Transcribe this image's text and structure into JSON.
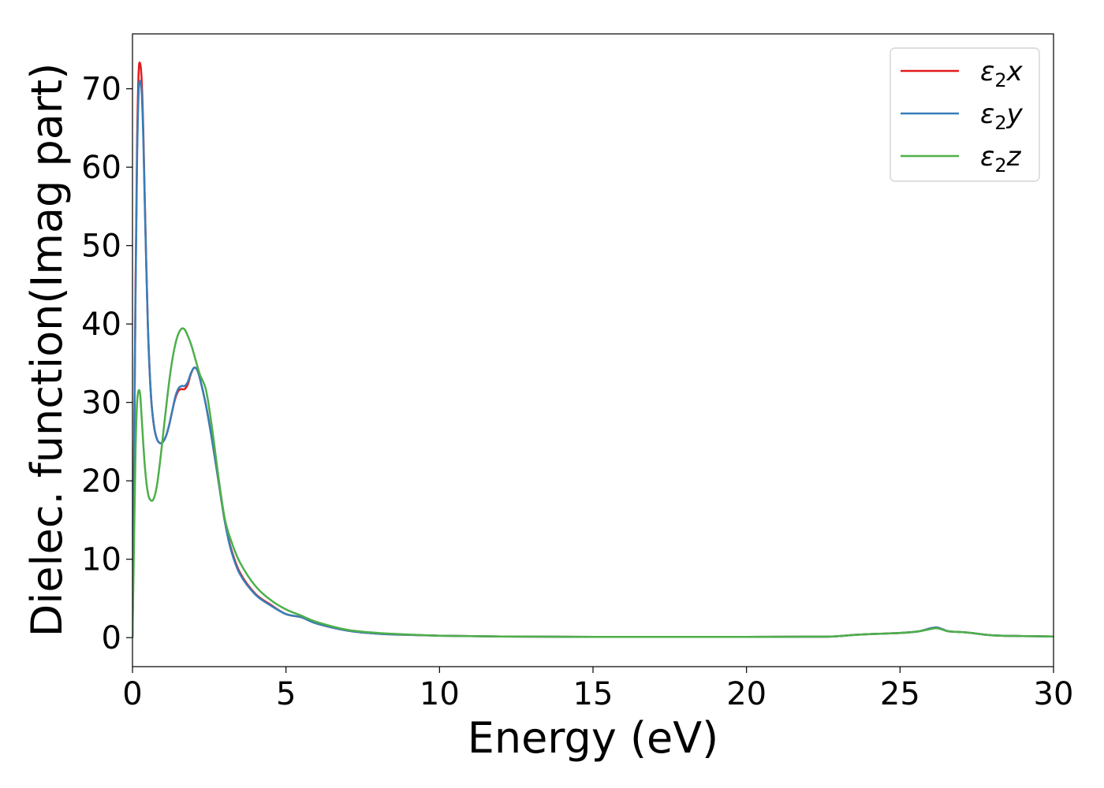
{
  "chart_data": {
    "type": "line",
    "title": "",
    "xlabel": "Energy (eV)",
    "ylabel": "Dielec. function(Imag part)",
    "xlim": [
      0,
      30
    ],
    "ylim": [
      -3.7,
      77
    ],
    "xticks": [
      0,
      5,
      10,
      15,
      20,
      25,
      30
    ],
    "yticks": [
      0,
      10,
      20,
      30,
      40,
      50,
      60,
      70
    ],
    "grid": false,
    "legend_position": "top-right",
    "series": [
      {
        "name": "ε₂x",
        "legend_main": "ε",
        "legend_sub": "2",
        "legend_suffix": "x",
        "color": "#e41a1c",
        "points": [
          [
            0,
            0
          ],
          [
            0.05,
            22
          ],
          [
            0.1,
            45
          ],
          [
            0.15,
            63
          ],
          [
            0.2,
            72
          ],
          [
            0.25,
            73.2
          ],
          [
            0.3,
            71
          ],
          [
            0.35,
            65
          ],
          [
            0.4,
            56
          ],
          [
            0.5,
            40
          ],
          [
            0.6,
            31
          ],
          [
            0.7,
            27
          ],
          [
            0.8,
            25.3
          ],
          [
            0.9,
            24.8
          ],
          [
            1.0,
            25
          ],
          [
            1.1,
            25.8
          ],
          [
            1.2,
            27.2
          ],
          [
            1.3,
            29
          ],
          [
            1.4,
            30.6
          ],
          [
            1.5,
            31.5
          ],
          [
            1.6,
            31.7
          ],
          [
            1.7,
            31.7
          ],
          [
            1.8,
            32.3
          ],
          [
            1.9,
            33.6
          ],
          [
            2.0,
            34.4
          ],
          [
            2.1,
            34.2
          ],
          [
            2.2,
            33
          ],
          [
            2.4,
            29.5
          ],
          [
            2.6,
            25
          ],
          [
            2.8,
            20
          ],
          [
            3.0,
            15
          ],
          [
            3.2,
            11.5
          ],
          [
            3.5,
            8.3
          ],
          [
            4.0,
            5.6
          ],
          [
            4.5,
            4.2
          ],
          [
            5.0,
            3.0
          ],
          [
            5.5,
            2.6
          ],
          [
            6.0,
            1.8
          ],
          [
            7.0,
            0.9
          ],
          [
            8.0,
            0.5
          ],
          [
            9.0,
            0.35
          ],
          [
            10.0,
            0.25
          ],
          [
            12.0,
            0.15
          ],
          [
            15.0,
            0.1
          ],
          [
            20.0,
            0.1
          ],
          [
            22.0,
            0.12
          ],
          [
            22.8,
            0.15
          ],
          [
            23.5,
            0.35
          ],
          [
            24.0,
            0.45
          ],
          [
            25.0,
            0.6
          ],
          [
            25.6,
            0.8
          ],
          [
            26.0,
            1.2
          ],
          [
            26.2,
            1.3
          ],
          [
            26.4,
            1.05
          ],
          [
            26.6,
            0.8
          ],
          [
            27.2,
            0.65
          ],
          [
            28.0,
            0.3
          ],
          [
            29.0,
            0.2
          ],
          [
            30.0,
            0.15
          ]
        ]
      },
      {
        "name": "ε₂y",
        "legend_main": "ε",
        "legend_sub": "2",
        "legend_suffix": "y",
        "color": "#377eb8",
        "points": [
          [
            0,
            0
          ],
          [
            0.05,
            22
          ],
          [
            0.1,
            44
          ],
          [
            0.15,
            61
          ],
          [
            0.2,
            69.5
          ],
          [
            0.25,
            71
          ],
          [
            0.3,
            69.5
          ],
          [
            0.35,
            64
          ],
          [
            0.4,
            55.5
          ],
          [
            0.5,
            40
          ],
          [
            0.6,
            31
          ],
          [
            0.7,
            27
          ],
          [
            0.8,
            25.3
          ],
          [
            0.9,
            24.8
          ],
          [
            1.0,
            25
          ],
          [
            1.1,
            25.8
          ],
          [
            1.2,
            27.2
          ],
          [
            1.3,
            29
          ],
          [
            1.4,
            30.8
          ],
          [
            1.5,
            31.8
          ],
          [
            1.6,
            32.1
          ],
          [
            1.7,
            32.1
          ],
          [
            1.8,
            32.6
          ],
          [
            1.9,
            33.7
          ],
          [
            2.0,
            34.4
          ],
          [
            2.1,
            34.2
          ],
          [
            2.2,
            33
          ],
          [
            2.4,
            29.5
          ],
          [
            2.6,
            25
          ],
          [
            2.8,
            20
          ],
          [
            3.0,
            15
          ],
          [
            3.2,
            11.3
          ],
          [
            3.5,
            8.1
          ],
          [
            4.0,
            5.5
          ],
          [
            4.5,
            4.1
          ],
          [
            5.0,
            3.0
          ],
          [
            5.5,
            2.6
          ],
          [
            6.0,
            1.8
          ],
          [
            7.0,
            0.9
          ],
          [
            8.0,
            0.5
          ],
          [
            9.0,
            0.35
          ],
          [
            10.0,
            0.25
          ],
          [
            12.0,
            0.15
          ],
          [
            15.0,
            0.1
          ],
          [
            20.0,
            0.1
          ],
          [
            22.0,
            0.12
          ],
          [
            22.8,
            0.15
          ],
          [
            23.5,
            0.35
          ],
          [
            24.0,
            0.45
          ],
          [
            25.0,
            0.6
          ],
          [
            25.6,
            0.8
          ],
          [
            26.0,
            1.2
          ],
          [
            26.2,
            1.3
          ],
          [
            26.4,
            1.05
          ],
          [
            26.6,
            0.8
          ],
          [
            27.2,
            0.65
          ],
          [
            28.0,
            0.3
          ],
          [
            29.0,
            0.2
          ],
          [
            30.0,
            0.15
          ]
        ]
      },
      {
        "name": "ε₂z",
        "legend_main": "ε",
        "legend_sub": "2",
        "legend_suffix": "z",
        "color": "#4daf4a",
        "points": [
          [
            0,
            0
          ],
          [
            0.05,
            12
          ],
          [
            0.1,
            24
          ],
          [
            0.15,
            30
          ],
          [
            0.2,
            31.5
          ],
          [
            0.25,
            31
          ],
          [
            0.3,
            28
          ],
          [
            0.4,
            22
          ],
          [
            0.5,
            18.5
          ],
          [
            0.6,
            17.5
          ],
          [
            0.7,
            17.8
          ],
          [
            0.8,
            19.5
          ],
          [
            0.9,
            22.5
          ],
          [
            1.0,
            26
          ],
          [
            1.1,
            29.5
          ],
          [
            1.2,
            32.8
          ],
          [
            1.3,
            35.5
          ],
          [
            1.4,
            37.5
          ],
          [
            1.5,
            38.8
          ],
          [
            1.6,
            39.4
          ],
          [
            1.7,
            39.3
          ],
          [
            1.8,
            38.5
          ],
          [
            1.9,
            37.5
          ],
          [
            2.0,
            36.2
          ],
          [
            2.1,
            34.8
          ],
          [
            2.2,
            33.5
          ],
          [
            2.4,
            31.5
          ],
          [
            2.6,
            26.5
          ],
          [
            2.8,
            20.5
          ],
          [
            3.0,
            15.3
          ],
          [
            3.2,
            12.5
          ],
          [
            3.5,
            9.6
          ],
          [
            4.0,
            6.6
          ],
          [
            4.5,
            4.8
          ],
          [
            5.0,
            3.6
          ],
          [
            5.5,
            2.8
          ],
          [
            6.0,
            2.0
          ],
          [
            7.0,
            1.0
          ],
          [
            8.0,
            0.6
          ],
          [
            9.0,
            0.4
          ],
          [
            10.0,
            0.25
          ],
          [
            12.0,
            0.15
          ],
          [
            15.0,
            0.1
          ],
          [
            20.0,
            0.1
          ],
          [
            22.0,
            0.12
          ],
          [
            22.8,
            0.15
          ],
          [
            23.5,
            0.35
          ],
          [
            24.0,
            0.45
          ],
          [
            25.0,
            0.6
          ],
          [
            25.6,
            0.8
          ],
          [
            26.0,
            1.1
          ],
          [
            26.2,
            1.2
          ],
          [
            26.4,
            1.0
          ],
          [
            26.6,
            0.8
          ],
          [
            27.2,
            0.65
          ],
          [
            28.0,
            0.3
          ],
          [
            29.0,
            0.2
          ],
          [
            30.0,
            0.15
          ]
        ]
      }
    ]
  }
}
